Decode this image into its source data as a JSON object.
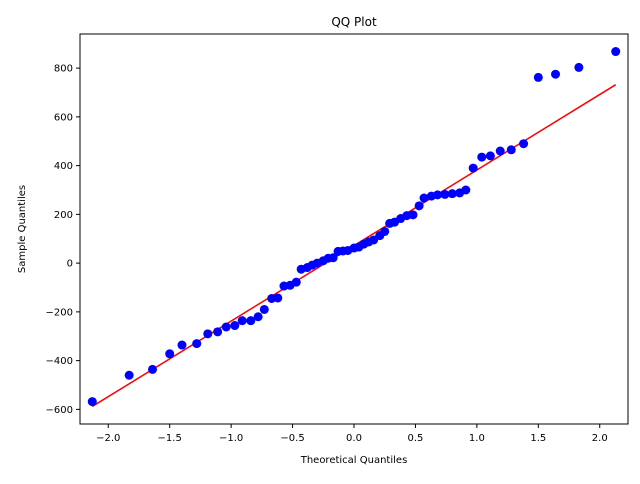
{
  "chart_data": {
    "type": "scatter",
    "title": "QQ Plot",
    "xlabel": "Theoretical Quantiles",
    "ylabel": "Sample Quantiles",
    "xlim": [
      -2.23,
      2.23
    ],
    "ylim": [
      -660,
      940
    ],
    "xticks": [
      -2.0,
      -1.5,
      -1.0,
      -0.5,
      0.0,
      0.5,
      1.0,
      1.5,
      2.0
    ],
    "xtick_labels": [
      "−2.0",
      "−1.5",
      "−1.0",
      "−0.5",
      "0.0",
      "0.5",
      "1.0",
      "1.5",
      "2.0"
    ],
    "yticks": [
      -600,
      -400,
      -200,
      0,
      200,
      400,
      600,
      800
    ],
    "ytick_labels": [
      "−600",
      "−400",
      "−200",
      "0",
      "200",
      "400",
      "600",
      "800"
    ],
    "grid": false,
    "point_color": "#0000ff",
    "line_color": "#ff0000",
    "points": [
      {
        "x": -2.13,
        "y": -568
      },
      {
        "x": -1.83,
        "y": -460
      },
      {
        "x": -1.64,
        "y": -436
      },
      {
        "x": -1.5,
        "y": -372
      },
      {
        "x": -1.4,
        "y": -336
      },
      {
        "x": -1.28,
        "y": -330
      },
      {
        "x": -1.19,
        "y": -290
      },
      {
        "x": -1.11,
        "y": -282
      },
      {
        "x": -1.04,
        "y": -262
      },
      {
        "x": -0.97,
        "y": -256
      },
      {
        "x": -0.91,
        "y": -236
      },
      {
        "x": -0.84,
        "y": -236
      },
      {
        "x": -0.78,
        "y": -220
      },
      {
        "x": -0.73,
        "y": -190
      },
      {
        "x": -0.67,
        "y": -145
      },
      {
        "x": -0.62,
        "y": -143
      },
      {
        "x": -0.57,
        "y": -94
      },
      {
        "x": -0.52,
        "y": -91
      },
      {
        "x": -0.47,
        "y": -78
      },
      {
        "x": -0.43,
        "y": -25
      },
      {
        "x": -0.38,
        "y": -18
      },
      {
        "x": -0.34,
        "y": -8
      },
      {
        "x": -0.3,
        "y": 0
      },
      {
        "x": -0.25,
        "y": 10
      },
      {
        "x": -0.21,
        "y": 20
      },
      {
        "x": -0.17,
        "y": 22
      },
      {
        "x": -0.13,
        "y": 48
      },
      {
        "x": -0.09,
        "y": 50
      },
      {
        "x": -0.05,
        "y": 52
      },
      {
        "x": 0.0,
        "y": 62
      },
      {
        "x": 0.04,
        "y": 66
      },
      {
        "x": 0.08,
        "y": 78
      },
      {
        "x": 0.12,
        "y": 87
      },
      {
        "x": 0.16,
        "y": 95
      },
      {
        "x": 0.21,
        "y": 113
      },
      {
        "x": 0.25,
        "y": 130
      },
      {
        "x": 0.29,
        "y": 163
      },
      {
        "x": 0.33,
        "y": 168
      },
      {
        "x": 0.38,
        "y": 183
      },
      {
        "x": 0.43,
        "y": 195
      },
      {
        "x": 0.48,
        "y": 198
      },
      {
        "x": 0.53,
        "y": 235
      },
      {
        "x": 0.57,
        "y": 267
      },
      {
        "x": 0.63,
        "y": 275
      },
      {
        "x": 0.68,
        "y": 280
      },
      {
        "x": 0.74,
        "y": 282
      },
      {
        "x": 0.8,
        "y": 285
      },
      {
        "x": 0.86,
        "y": 288
      },
      {
        "x": 0.91,
        "y": 300
      },
      {
        "x": 0.97,
        "y": 390
      },
      {
        "x": 1.04,
        "y": 435
      },
      {
        "x": 1.11,
        "y": 440
      },
      {
        "x": 1.19,
        "y": 460
      },
      {
        "x": 1.28,
        "y": 465
      },
      {
        "x": 1.38,
        "y": 490
      },
      {
        "x": 1.5,
        "y": 762
      },
      {
        "x": 1.64,
        "y": 775
      },
      {
        "x": 1.83,
        "y": 803
      },
      {
        "x": 2.13,
        "y": 868
      }
    ],
    "reference_line": [
      {
        "x": -2.13,
        "y": -588
      },
      {
        "x": 2.13,
        "y": 732
      }
    ]
  }
}
